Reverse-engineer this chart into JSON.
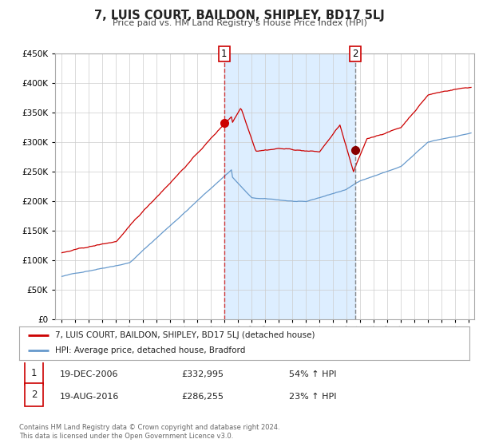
{
  "title": "7, LUIS COURT, BAILDON, SHIPLEY, BD17 5LJ",
  "subtitle": "Price paid vs. HM Land Registry's House Price Index (HPI)",
  "red_label": "7, LUIS COURT, BAILDON, SHIPLEY, BD17 5LJ (detached house)",
  "blue_label": "HPI: Average price, detached house, Bradford",
  "transaction1_date": "19-DEC-2006",
  "transaction1_price": "£332,995",
  "transaction1_hpi": "54% ↑ HPI",
  "transaction2_date": "19-AUG-2016",
  "transaction2_price": "£286,255",
  "transaction2_hpi": "23% ↑ HPI",
  "footnote1": "Contains HM Land Registry data © Crown copyright and database right 2024.",
  "footnote2": "This data is licensed under the Open Government Licence v3.0.",
  "sale1_year": 2006.97,
  "sale1_value": 332995,
  "sale2_year": 2016.63,
  "sale2_value": 286255,
  "ylim": [
    0,
    450000
  ],
  "xlim_start": 1994.5,
  "xlim_end": 2025.4,
  "red_color": "#cc0000",
  "blue_color": "#6699cc",
  "shading_color": "#ddeeff",
  "grid_color": "#cccccc",
  "background_color": "#ffffff"
}
